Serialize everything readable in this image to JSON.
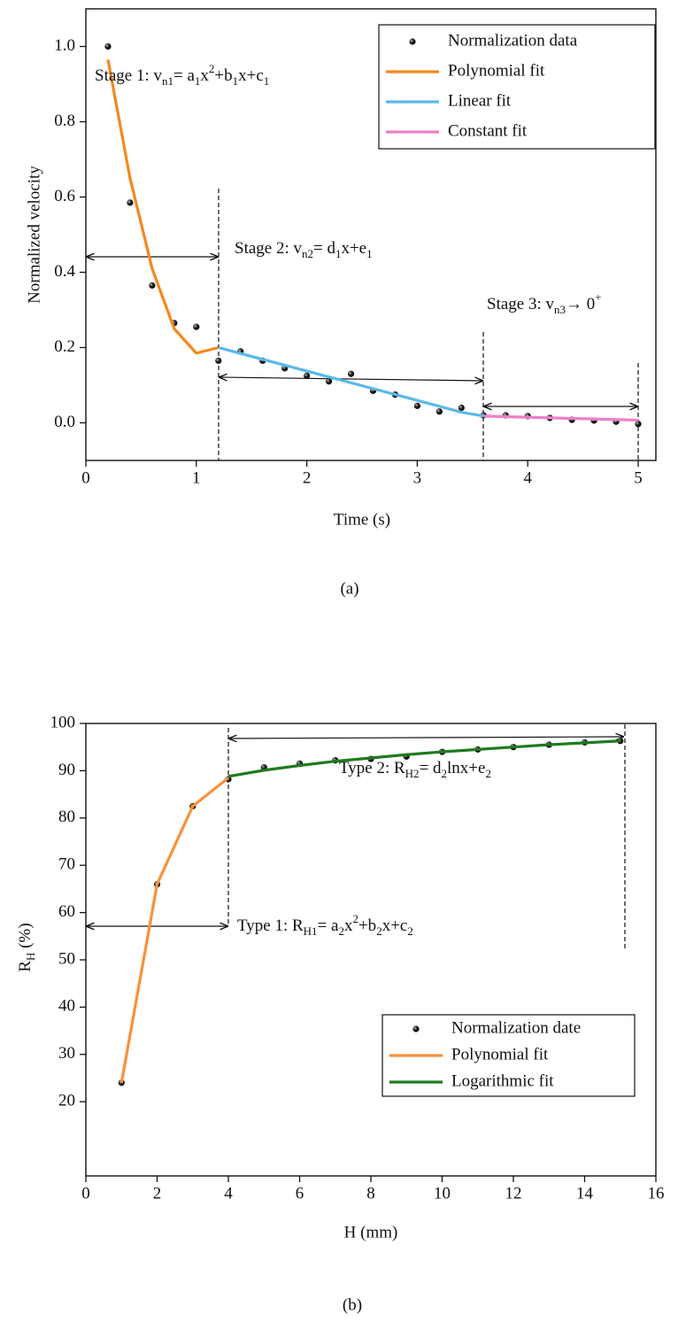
{
  "chart_data": [
    {
      "type": "line",
      "xlabel": "Time (s)",
      "ylabel": "Normalized velocity",
      "caption": "(a)",
      "xlim": [
        0,
        5.16
      ],
      "ylim": [
        -0.1,
        1.1
      ],
      "xticks": [
        0,
        1,
        2,
        3,
        4,
        5
      ],
      "yticks": [
        {
          "value": 0,
          "label": "0.0"
        },
        0.2,
        0.4,
        0.6,
        0.8,
        {
          "value": 1,
          "label": "1.0"
        }
      ],
      "legend": "upper right",
      "annotations": [
        [
          "Stage 1: v",
          "n1",
          "= a",
          "1",
          "x",
          "2",
          "+b",
          "1",
          "x+c",
          "1"
        ],
        [
          "Stage 2: v",
          "n2",
          "= d",
          "1",
          "x+e",
          "1"
        ],
        [
          "Stage 3: v",
          "n3",
          "→ 0",
          "+"
        ]
      ],
      "series": [
        {
          "name": "Normalization data",
          "kind": "scatter",
          "color": "#1a1a1a",
          "x": [
            0.2,
            0.4,
            0.6,
            0.8,
            1,
            1.2,
            1.4,
            1.6,
            1.8,
            2,
            2.2,
            2.4,
            2.6,
            2.8,
            3,
            3.2,
            3.4,
            3.6,
            3.8,
            4,
            4.2,
            4.4,
            4.6,
            4.8,
            5
          ],
          "values": [
            1.0,
            0.585,
            0.365,
            0.265,
            0.255,
            0.165,
            0.19,
            0.165,
            0.145,
            0.125,
            0.11,
            0.13,
            0.085,
            0.075,
            0.045,
            0.03,
            0.04,
            0.02,
            0.02,
            0.018,
            0.013,
            0.008,
            0.006,
            0.003,
            -0.003
          ]
        },
        {
          "name": "Polynomial fit",
          "kind": "line",
          "color": "#f7861c",
          "x": [
            0.2,
            0.4,
            0.6,
            0.8,
            1,
            1.2
          ],
          "values": [
            0.965,
            0.65,
            0.41,
            0.25,
            0.185,
            0.2
          ]
        },
        {
          "name": "Linear fit",
          "kind": "line",
          "color": "#5ab9e8",
          "x": [
            1.2,
            2.2,
            3.2,
            3.4,
            3.6
          ],
          "values": [
            0.2,
            0.122,
            0.044,
            0.028,
            0.018
          ]
        },
        {
          "name": "Constant fit",
          "kind": "line",
          "color": "#ee7fc6",
          "x": [
            3.6,
            5
          ],
          "values": [
            0.018,
            0.007
          ]
        }
      ]
    },
    {
      "type": "line",
      "xlabel": "H (mm)",
      "ylabel": [
        "R",
        "H",
        " (%)"
      ],
      "caption": "(b)",
      "xlim": [
        0,
        16
      ],
      "ylim": [
        4.3,
        100
      ],
      "xticks": [
        0,
        2,
        4,
        6,
        8,
        10,
        12,
        14,
        16
      ],
      "yticks": [
        20,
        30,
        40,
        50,
        60,
        70,
        80,
        90,
        100
      ],
      "legend": "lower right",
      "annotations": [
        [
          "Type 2: R",
          "H2",
          "= d",
          "2",
          "lnx+e",
          "2"
        ],
        [
          "Type 1: R",
          "H1",
          "= a",
          "2",
          "x",
          "2",
          "+b",
          "2",
          "x+c",
          "2"
        ]
      ],
      "series": [
        {
          "name": "Normalization date",
          "kind": "scatter",
          "color": "#1a1a1a",
          "x": [
            1,
            2,
            3,
            4,
            5,
            6,
            7,
            8,
            9,
            10,
            11,
            12,
            13,
            14,
            15
          ],
          "values": [
            24,
            66,
            82.5,
            88.2,
            90.7,
            91.5,
            92.2,
            92.5,
            93,
            94,
            94.5,
            95,
            95.5,
            96,
            96.3
          ]
        },
        {
          "name": "Polynomial fit",
          "kind": "line",
          "color": "#f7923a",
          "x": [
            1,
            2,
            3,
            4
          ],
          "values": [
            24,
            66,
            82.5,
            88.5
          ]
        },
        {
          "name": "Logarithmic fit",
          "kind": "line",
          "color": "#1e7b1e",
          "x": [
            4,
            5,
            6,
            7,
            8,
            9,
            10,
            11,
            12,
            13,
            14,
            15
          ],
          "values": [
            88.8,
            90.1,
            91.1,
            92,
            92.7,
            93.4,
            94,
            94.5,
            95,
            95.5,
            95.9,
            96.3
          ]
        }
      ]
    }
  ]
}
